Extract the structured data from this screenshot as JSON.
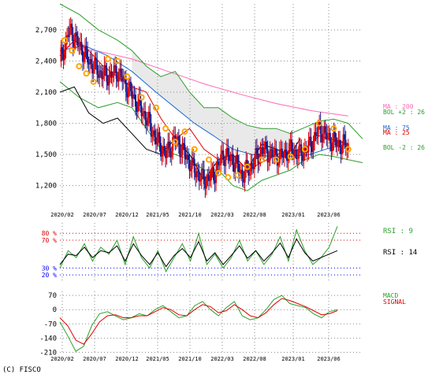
{
  "copyright": "(C) FISCO",
  "colors": {
    "grid": "#888888",
    "candle_up": "#e00000",
    "candle_down": "#1a1a8c",
    "ma200": "#ff69b4",
    "ma_long": "#1e6bd6",
    "ma_short": "#e00000",
    "bollinger": "#2ca02c",
    "ichimoku_cloud": "#999999",
    "chikou": "#000000",
    "psar": "#ffa500",
    "rsi9": "#2ca02c",
    "rsi14": "#000000",
    "macd": "#2ca02c",
    "signal": "#e00000",
    "rsi_overbought": "#e00000",
    "rsi_oversold": "#0000ff"
  },
  "chart_data": [
    {
      "panel": "price",
      "type": "candlestick",
      "x_labels": [
        "2020/02",
        "2020/07",
        "2020/12",
        "2021/05",
        "2021/10",
        "2022/03",
        "2022/08",
        "2023/01",
        "2023/06"
      ],
      "y_ticks": [
        "2,700",
        "2,400",
        "2,100",
        "1,800",
        "1,500",
        "1,200"
      ],
      "y_tick_values": [
        2700,
        2400,
        2100,
        1800,
        1500,
        1200
      ],
      "ylim": [
        1000,
        2950
      ],
      "grid": true,
      "legend": [
        {
          "text": "MA : 200",
          "color_key": "ma200"
        },
        {
          "text": "BOL +2 : 26",
          "color_key": "bollinger"
        },
        {
          "text": "MA : 75",
          "color_key": "ma_long"
        },
        {
          "text": "MA : 25",
          "color_key": "ma_short"
        },
        {
          "text": "BOL -2 : 26",
          "color_key": "bollinger"
        }
      ],
      "ma200_path": [
        [
          0,
          2550
        ],
        [
          15,
          2500
        ],
        [
          30,
          2420
        ],
        [
          45,
          2300
        ],
        [
          60,
          2180
        ],
        [
          75,
          2080
        ],
        [
          90,
          1990
        ],
        [
          105,
          1920
        ],
        [
          120,
          1870
        ]
      ],
      "bol_upper_path": [
        [
          0,
          2950
        ],
        [
          8,
          2850
        ],
        [
          16,
          2700
        ],
        [
          24,
          2600
        ],
        [
          30,
          2500
        ],
        [
          36,
          2350
        ],
        [
          42,
          2250
        ],
        [
          48,
          2300
        ],
        [
          54,
          2100
        ],
        [
          60,
          1950
        ],
        [
          66,
          1950
        ],
        [
          72,
          1850
        ],
        [
          78,
          1780
        ],
        [
          84,
          1750
        ],
        [
          90,
          1750
        ],
        [
          96,
          1700
        ],
        [
          102,
          1760
        ],
        [
          108,
          1820
        ],
        [
          114,
          1840
        ],
        [
          120,
          1800
        ],
        [
          126,
          1650
        ]
      ],
      "bol_lower_path": [
        [
          0,
          2200
        ],
        [
          8,
          2050
        ],
        [
          16,
          1950
        ],
        [
          24,
          2000
        ],
        [
          30,
          1950
        ],
        [
          36,
          1750
        ],
        [
          42,
          1550
        ],
        [
          48,
          1500
        ],
        [
          54,
          1450
        ],
        [
          60,
          1350
        ],
        [
          66,
          1350
        ],
        [
          72,
          1200
        ],
        [
          78,
          1150
        ],
        [
          84,
          1250
        ],
        [
          90,
          1300
        ],
        [
          96,
          1350
        ],
        [
          102,
          1450
        ],
        [
          108,
          1500
        ],
        [
          114,
          1480
        ],
        [
          120,
          1450
        ],
        [
          126,
          1420
        ]
      ],
      "ma75_path": [
        [
          0,
          2500
        ],
        [
          10,
          2550
        ],
        [
          20,
          2450
        ],
        [
          30,
          2300
        ],
        [
          40,
          2100
        ],
        [
          48,
          1950
        ],
        [
          56,
          1800
        ],
        [
          64,
          1680
        ],
        [
          72,
          1550
        ],
        [
          80,
          1500
        ],
        [
          88,
          1480
        ],
        [
          96,
          1480
        ],
        [
          104,
          1500
        ],
        [
          112,
          1560
        ],
        [
          120,
          1600
        ]
      ],
      "ma25_path": [
        [
          0,
          2450
        ],
        [
          6,
          2600
        ],
        [
          12,
          2500
        ],
        [
          18,
          2350
        ],
        [
          24,
          2250
        ],
        [
          30,
          2150
        ],
        [
          36,
          2100
        ],
        [
          42,
          1850
        ],
        [
          48,
          1650
        ],
        [
          54,
          1750
        ],
        [
          60,
          1550
        ],
        [
          66,
          1450
        ],
        [
          72,
          1500
        ],
        [
          78,
          1350
        ],
        [
          84,
          1420
        ],
        [
          90,
          1500
        ],
        [
          96,
          1530
        ],
        [
          102,
          1560
        ],
        [
          108,
          1680
        ],
        [
          114,
          1640
        ],
        [
          120,
          1600
        ]
      ],
      "chikou_path": [
        [
          0,
          2100
        ],
        [
          6,
          2150
        ],
        [
          12,
          1900
        ],
        [
          18,
          1800
        ],
        [
          24,
          1850
        ],
        [
          30,
          1700
        ],
        [
          36,
          1550
        ],
        [
          42,
          1500
        ],
        [
          48,
          1650
        ],
        [
          54,
          1500
        ],
        [
          60,
          1250
        ],
        [
          66,
          1450
        ],
        [
          72,
          1500
        ],
        [
          78,
          1350
        ],
        [
          84,
          1600
        ],
        [
          90,
          1550
        ],
        [
          96,
          1500
        ],
        [
          100,
          1650
        ]
      ],
      "close_path": [
        [
          0,
          2400
        ],
        [
          4,
          2700
        ],
        [
          8,
          2550
        ],
        [
          12,
          2400
        ],
        [
          16,
          2300
        ],
        [
          20,
          2250
        ],
        [
          24,
          2300
        ],
        [
          28,
          2150
        ],
        [
          32,
          2000
        ],
        [
          36,
          1850
        ],
        [
          40,
          1650
        ],
        [
          44,
          1500
        ],
        [
          48,
          1650
        ],
        [
          52,
          1500
        ],
        [
          56,
          1350
        ],
        [
          60,
          1250
        ],
        [
          64,
          1300
        ],
        [
          68,
          1500
        ],
        [
          72,
          1450
        ],
        [
          76,
          1300
        ],
        [
          80,
          1400
        ],
        [
          84,
          1550
        ],
        [
          88,
          1500
        ],
        [
          92,
          1480
        ],
        [
          96,
          1550
        ],
        [
          100,
          1500
        ],
        [
          104,
          1580
        ],
        [
          108,
          1750
        ],
        [
          112,
          1650
        ],
        [
          116,
          1600
        ],
        [
          120,
          1580
        ]
      ],
      "psar_points": [
        [
          2,
          2600
        ],
        [
          5,
          2500
        ],
        [
          8,
          2350
        ],
        [
          11,
          2280
        ],
        [
          14,
          2200
        ],
        [
          20,
          2420
        ],
        [
          24,
          2400
        ],
        [
          28,
          2250
        ],
        [
          34,
          2050
        ],
        [
          40,
          1950
        ],
        [
          44,
          1750
        ],
        [
          48,
          1620
        ],
        [
          52,
          1720
        ],
        [
          56,
          1550
        ],
        [
          62,
          1450
        ],
        [
          66,
          1320
        ],
        [
          70,
          1280
        ],
        [
          74,
          1300
        ],
        [
          78,
          1380
        ],
        [
          84,
          1450
        ],
        [
          90,
          1450
        ],
        [
          96,
          1480
        ],
        [
          102,
          1550
        ],
        [
          108,
          1800
        ],
        [
          114,
          1750
        ],
        [
          120,
          1550
        ]
      ],
      "x_max": 126
    },
    {
      "panel": "rsi",
      "type": "line",
      "y_ticks": [
        "80 %",
        "70 %",
        "30 %",
        "20 %"
      ],
      "y_tick_values": [
        80,
        70,
        30,
        20
      ],
      "ylim": [
        10,
        95
      ],
      "series": [
        {
          "name": "RSI : 9",
          "color_key": "rsi9",
          "values": [
            30,
            55,
            45,
            65,
            40,
            60,
            50,
            70,
            35,
            75,
            45,
            30,
            55,
            25,
            45,
            65,
            40,
            80,
            35,
            50,
            30,
            45,
            70,
            40,
            55,
            35,
            50,
            75,
            40,
            85,
            55,
            35,
            45,
            60,
            90
          ]
        },
        {
          "name": "RSI : 14",
          "color_key": "rsi14",
          "values": [
            35,
            50,
            48,
            60,
            45,
            55,
            52,
            62,
            40,
            65,
            48,
            35,
            52,
            32,
            48,
            58,
            45,
            68,
            40,
            52,
            35,
            48,
            62,
            44,
            55,
            40,
            52,
            66,
            45,
            72,
            52,
            40,
            45,
            50,
            55
          ]
        }
      ]
    },
    {
      "panel": "macd",
      "type": "line",
      "y_ticks": [
        "70",
        "0",
        "-70",
        "-140",
        "-210"
      ],
      "y_tick_values": [
        70,
        0,
        -70,
        -140,
        -210
      ],
      "ylim": [
        -220,
        90
      ],
      "series": [
        {
          "name": "MACD",
          "color_key": "macd",
          "values": [
            -60,
            -130,
            -205,
            -180,
            -80,
            -20,
            -10,
            -30,
            -50,
            -40,
            -20,
            -30,
            0,
            20,
            -10,
            -40,
            -30,
            20,
            40,
            0,
            -30,
            10,
            40,
            -30,
            -50,
            -40,
            0,
            50,
            70,
            30,
            20,
            10,
            -20,
            -40,
            -10,
            0
          ]
        },
        {
          "name": "SIGNAL",
          "color_key": "signal",
          "values": [
            -40,
            -80,
            -150,
            -170,
            -120,
            -60,
            -30,
            -25,
            -40,
            -40,
            -30,
            -30,
            -10,
            10,
            0,
            -25,
            -30,
            0,
            25,
            15,
            -15,
            -5,
            25,
            0,
            -30,
            -40,
            -15,
            25,
            55,
            45,
            30,
            15,
            -5,
            -25,
            -20,
            -5
          ]
        }
      ]
    }
  ]
}
